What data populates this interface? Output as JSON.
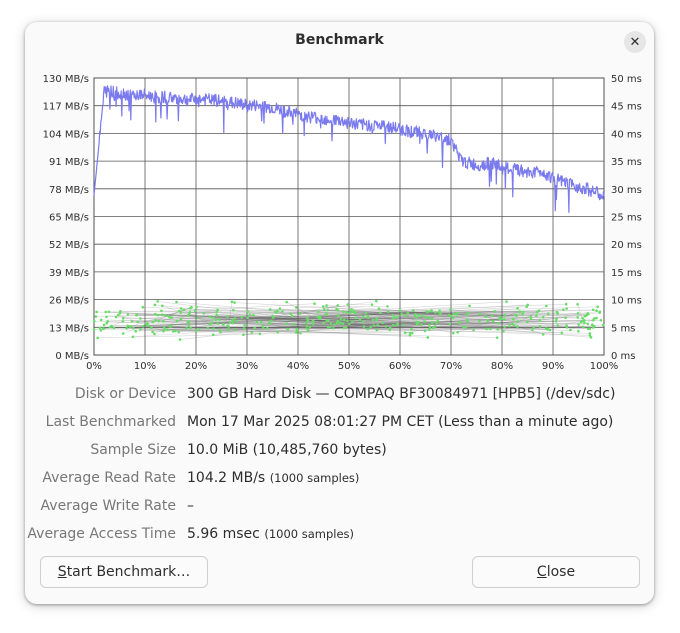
{
  "window": {
    "title": "Benchmark",
    "close_icon": "close-icon"
  },
  "chart_data": {
    "type": "line",
    "x_ticks": [
      "0%",
      "10%",
      "20%",
      "30%",
      "40%",
      "50%",
      "60%",
      "70%",
      "80%",
      "90%",
      "100%"
    ],
    "y_left_ticks": [
      "0 MB/s",
      "13 MB/s",
      "26 MB/s",
      "39 MB/s",
      "52 MB/s",
      "65 MB/s",
      "78 MB/s",
      "91 MB/s",
      "104 MB/s",
      "117 MB/s",
      "130 MB/s"
    ],
    "y_right_ticks": [
      "0 ms",
      "5 ms",
      "10 ms",
      "15 ms",
      "20 ms",
      "25 ms",
      "30 ms",
      "35 ms",
      "40 ms",
      "45 ms",
      "50 ms"
    ],
    "xlim": [
      0,
      100
    ],
    "ylim_left": [
      0,
      130
    ],
    "ylim_right": [
      0,
      50
    ],
    "grid": true,
    "series": [
      {
        "kind": "read_rate_line",
        "color": "#7a7aee",
        "x": [
          0,
          2,
          5,
          8,
          10,
          12,
          15,
          18,
          20,
          22,
          25,
          28,
          30,
          32,
          35,
          38,
          40,
          42,
          45,
          48,
          50,
          52,
          55,
          58,
          60,
          62,
          65,
          68,
          70,
          72,
          75,
          78,
          80,
          82,
          85,
          88,
          90,
          92,
          95,
          98,
          100
        ],
        "y": [
          75,
          124,
          123,
          122,
          122,
          121,
          121,
          120,
          120,
          120,
          119,
          118,
          117,
          117,
          116,
          114,
          113,
          112,
          111,
          110,
          109,
          108,
          108,
          107,
          106,
          105,
          104,
          102,
          101,
          91,
          89,
          90,
          88,
          87,
          86,
          86,
          83,
          81,
          79,
          77,
          74
        ]
      },
      {
        "kind": "access_time_scatter",
        "color": "#66dd66",
        "mean_ms": 5.96,
        "range_ms": [
          2,
          11
        ]
      }
    ]
  },
  "info": {
    "device_label": "Disk or Device",
    "device_value": "300 GB Hard Disk — COMPAQ BF30084971 [HPB5] (/dev/sdc)",
    "last_label": "Last Benchmarked",
    "last_value": "Mon 17 Mar 2025 08:01:27 PM CET (Less than a minute ago)",
    "sample_label": "Sample Size",
    "sample_value": "10.0 MiB (10,485,760 bytes)",
    "read_label": "Average Read Rate",
    "read_value": "104.2 MB/s",
    "read_samples": "(1000 samples)",
    "write_label": "Average Write Rate",
    "write_value": "–",
    "access_label": "Average Access Time",
    "access_value": "5.96 msec",
    "access_samples": "(1000 samples)"
  },
  "buttons": {
    "start_first": "S",
    "start_rest": "tart Benchmark…",
    "close_first": "C",
    "close_rest": "lose"
  }
}
